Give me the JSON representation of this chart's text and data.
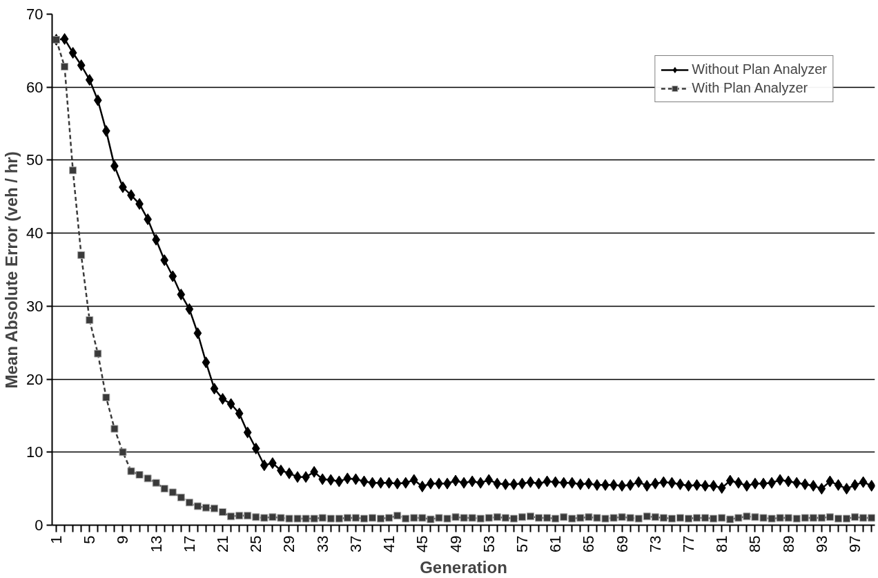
{
  "chart_data": {
    "type": "line",
    "xlabel": "Generation",
    "ylabel": "Mean Absolute Error (veh / hr)",
    "categories": [
      "1",
      null,
      null,
      null,
      "5",
      null,
      null,
      null,
      "9",
      null,
      null,
      null,
      "13",
      null,
      null,
      null,
      "17",
      null,
      null,
      null,
      "21",
      null,
      null,
      null,
      "25",
      null,
      null,
      null,
      "29",
      null,
      null,
      null,
      "33",
      null,
      null,
      null,
      "37",
      null,
      null,
      null,
      "41",
      null,
      null,
      null,
      "45",
      null,
      null,
      null,
      "49",
      null,
      null,
      null,
      "53",
      null,
      null,
      null,
      "57",
      null,
      null,
      null,
      "61",
      null,
      null,
      null,
      "65",
      null,
      null,
      null,
      "69",
      null,
      null,
      null,
      "73",
      null,
      null,
      null,
      "77",
      null,
      null,
      null,
      "81",
      null,
      null,
      null,
      "85",
      null,
      null,
      null,
      "89",
      null,
      null,
      null,
      "93",
      null,
      null,
      null,
      "97",
      null,
      null
    ],
    "ylim": [
      0,
      70
    ],
    "yticks": [
      0,
      10,
      20,
      30,
      40,
      50,
      60,
      70
    ],
    "grid": "y",
    "legend": "top right",
    "series": [
      {
        "name": "Without Plan Analyzer",
        "color": "#000000",
        "marker": "diamond",
        "line_style": "solid",
        "values": [
          66.5,
          66.6,
          64.7,
          63.0,
          61.0,
          58.2,
          54.0,
          49.2,
          46.3,
          45.2,
          44.0,
          41.9,
          39.1,
          36.3,
          34.1,
          31.6,
          29.6,
          26.3,
          22.3,
          18.7,
          17.3,
          16.6,
          15.3,
          12.7,
          10.5,
          8.2,
          8.5,
          7.5,
          7.1,
          6.6,
          6.6,
          7.3,
          6.3,
          6.2,
          6.0,
          6.4,
          6.3,
          6.0,
          5.8,
          5.8,
          5.8,
          5.7,
          5.8,
          6.2,
          5.3,
          5.7,
          5.7,
          5.7,
          6.1,
          5.8,
          6.0,
          5.8,
          6.2,
          5.7,
          5.6,
          5.6,
          5.7,
          5.9,
          5.7,
          6.0,
          5.9,
          5.8,
          5.8,
          5.6,
          5.7,
          5.5,
          5.5,
          5.5,
          5.4,
          5.5,
          5.9,
          5.4,
          5.7,
          5.9,
          5.8,
          5.6,
          5.4,
          5.5,
          5.4,
          5.4,
          5.1,
          6.1,
          5.8,
          5.4,
          5.7,
          5.7,
          5.8,
          6.2,
          6.0,
          5.8,
          5.6,
          5.4,
          5.0,
          6.0,
          5.5,
          5.0,
          5.5,
          5.9,
          5.4
        ]
      },
      {
        "name": "With Plan Analyzer",
        "color": "#3a3a3a",
        "marker": "square",
        "line_style": "dashed",
        "values": [
          66.5,
          62.8,
          48.6,
          37.0,
          28.1,
          23.5,
          17.5,
          13.2,
          10.0,
          7.4,
          6.9,
          6.4,
          5.8,
          5.0,
          4.5,
          3.8,
          3.1,
          2.6,
          2.4,
          2.3,
          1.8,
          1.2,
          1.3,
          1.3,
          1.1,
          1.0,
          1.1,
          1.0,
          0.9,
          0.9,
          0.9,
          0.9,
          1.0,
          0.9,
          0.9,
          1.0,
          1.0,
          0.9,
          1.0,
          0.9,
          1.0,
          1.3,
          0.9,
          1.0,
          1.0,
          0.8,
          1.0,
          0.9,
          1.1,
          1.0,
          1.0,
          0.9,
          1.0,
          1.1,
          1.0,
          0.9,
          1.1,
          1.2,
          1.0,
          1.0,
          0.9,
          1.1,
          0.9,
          1.0,
          1.1,
          1.0,
          0.9,
          1.0,
          1.1,
          1.0,
          0.9,
          1.2,
          1.1,
          1.0,
          0.9,
          1.0,
          0.9,
          1.0,
          1.0,
          0.9,
          1.0,
          0.8,
          1.0,
          1.2,
          1.1,
          1.0,
          0.9,
          1.0,
          1.0,
          0.9,
          1.0,
          1.0,
          1.0,
          1.1,
          0.9,
          0.9,
          1.1,
          1.0,
          1.0
        ]
      }
    ]
  }
}
